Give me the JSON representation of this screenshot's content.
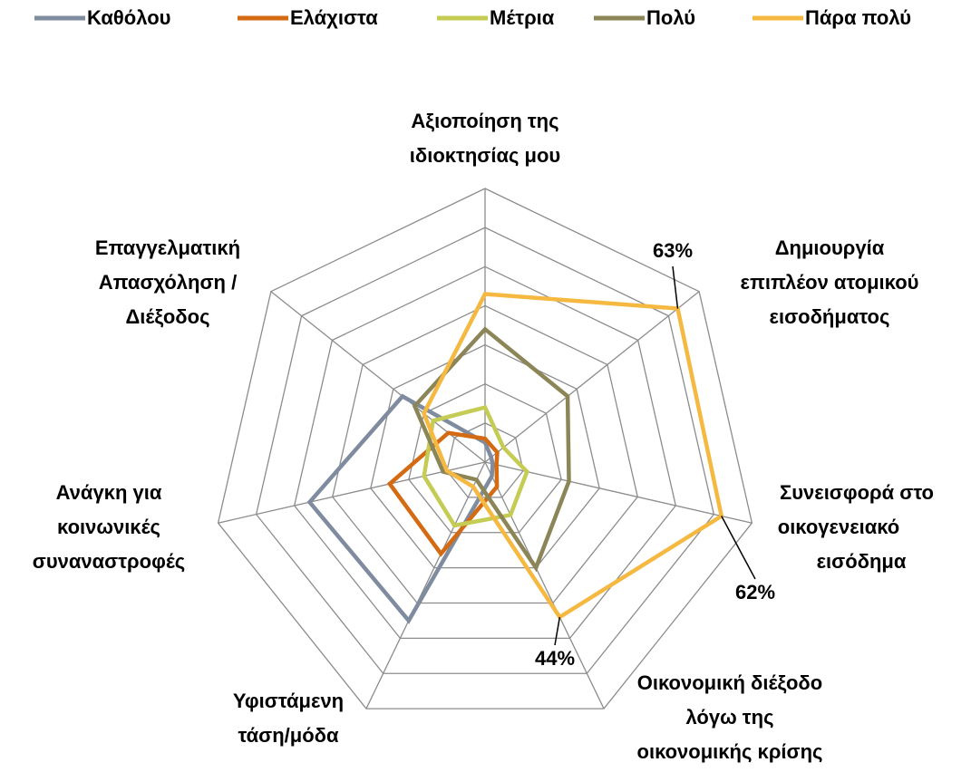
{
  "chart_data": {
    "type": "radar",
    "categories": [
      [
        "Αξιοποίηση της",
        "ιδιοκτησίας μου"
      ],
      [
        "Δημιουργία",
        "επιπλέον ατομικού",
        "εισοδήματος"
      ],
      [
        "Συνεισφορά στο",
        "οικογενειακό",
        "εισόδημα"
      ],
      [
        "Οικονομική διέξοδο",
        "λόγω της",
        "οικονομικής κρίσης"
      ],
      [
        "Υφιστάμενη",
        "τάση/μόδα"
      ],
      [
        "Ανάγκη για",
        "κοινωνικές",
        "συναναστροφές"
      ],
      [
        "Επαγγελματική",
        "Απασχόληση /",
        "Διέξοδος"
      ]
    ],
    "series": [
      {
        "name": "Καθόλου",
        "color": "#7f8ca0",
        "values": [
          5,
          2,
          2,
          4,
          45,
          46,
          27
        ]
      },
      {
        "name": "Ελάχιστα",
        "color": "#d46a12",
        "values": [
          6,
          4,
          3,
          7,
          26,
          25,
          12
        ]
      },
      {
        "name": "Μέτρια",
        "color": "#c4cc54",
        "values": [
          14,
          6,
          11,
          15,
          18,
          16,
          17
        ]
      },
      {
        "name": "Πολύ",
        "color": "#8b8558",
        "values": [
          34,
          27,
          22,
          30,
          5,
          11,
          23
        ]
      },
      {
        "name": "Πάρα πολύ",
        "color": "#f5b942",
        "values": [
          43,
          63,
          62,
          44,
          7,
          10,
          20
        ],
        "value_labels": [
          null,
          "63%",
          "62%",
          "44%",
          null,
          null,
          null
        ]
      }
    ],
    "ylim": [
      0,
      70
    ],
    "yticks": [
      0,
      10,
      20,
      30,
      40,
      50,
      60,
      70
    ],
    "grid": true,
    "legend": "top"
  }
}
